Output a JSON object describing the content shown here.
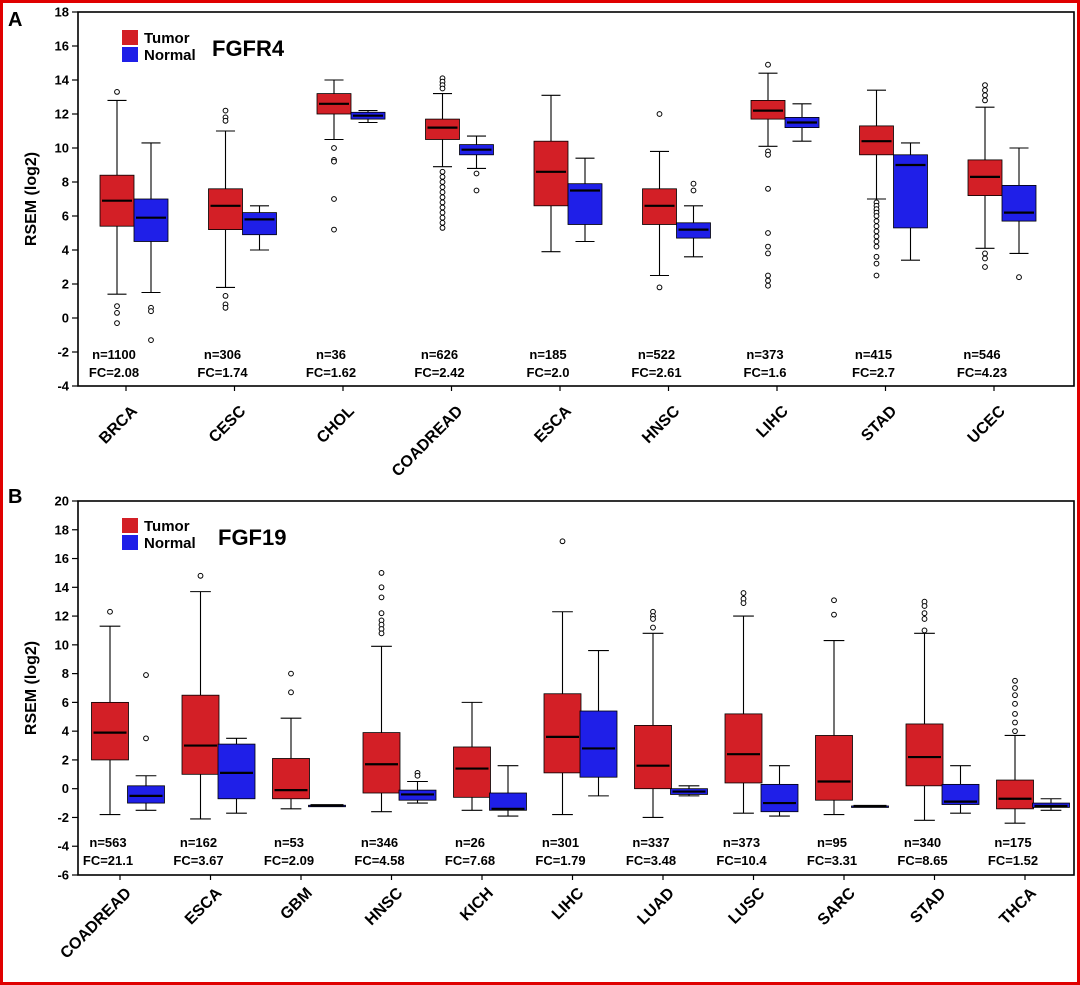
{
  "colors": {
    "tumor": "#d31f26",
    "normal": "#1f1fe8",
    "frame": "#e00000"
  },
  "chart_data": [
    {
      "type": "box",
      "panel_label": "A",
      "title": "FGFR4",
      "ylabel": "RSEM (log2)",
      "ylim": [
        -4,
        18
      ],
      "yticks": [
        -4,
        -2,
        0,
        2,
        4,
        6,
        8,
        10,
        12,
        14,
        16,
        18
      ],
      "legend": [
        "Tumor",
        "Normal"
      ],
      "legend_position": "top-left",
      "categories": [
        {
          "name": "BRCA",
          "n": "n=1100",
          "fc": "FC=2.08",
          "tumor": {
            "whislo": 1.4,
            "q1": 5.4,
            "med": 6.9,
            "q3": 8.4,
            "whishi": 12.8,
            "fliers": [
              13.3,
              0.7,
              0.3,
              -0.3
            ]
          },
          "normal": {
            "whislo": 1.5,
            "q1": 4.5,
            "med": 5.9,
            "q3": 7.0,
            "whishi": 10.3,
            "fliers": [
              0.6,
              0.4,
              -1.3
            ]
          }
        },
        {
          "name": "CESC",
          "n": "n=306",
          "fc": "FC=1.74",
          "tumor": {
            "whislo": 1.8,
            "q1": 5.2,
            "med": 6.6,
            "q3": 7.6,
            "whishi": 11.0,
            "fliers": [
              12.2,
              11.8,
              11.6,
              1.3,
              0.8,
              0.6
            ]
          },
          "normal": {
            "whislo": 4.0,
            "q1": 4.9,
            "med": 5.8,
            "q3": 6.2,
            "whishi": 6.6,
            "fliers": []
          }
        },
        {
          "name": "CHOL",
          "n": "n=36",
          "fc": "FC=1.62",
          "tumor": {
            "whislo": 10.5,
            "q1": 12.0,
            "med": 12.6,
            "q3": 13.2,
            "whishi": 14.0,
            "fliers": [
              10.0,
              9.3,
              9.2,
              7.0,
              5.2
            ]
          },
          "normal": {
            "whislo": 11.5,
            "q1": 11.7,
            "med": 11.9,
            "q3": 12.1,
            "whishi": 12.2,
            "fliers": []
          }
        },
        {
          "name": "COADREAD",
          "n": "n=626",
          "fc": "FC=2.42",
          "tumor": {
            "whislo": 8.9,
            "q1": 10.5,
            "med": 11.2,
            "q3": 11.7,
            "whishi": 13.2,
            "fliers": [
              14.1,
              13.9,
              13.7,
              13.5,
              8.6,
              8.3,
              8.0,
              7.7,
              7.4,
              7.1,
              6.8,
              6.5,
              6.2,
              5.9,
              5.6,
              5.3
            ]
          },
          "normal": {
            "whislo": 8.8,
            "q1": 9.6,
            "med": 9.9,
            "q3": 10.2,
            "whishi": 10.7,
            "fliers": [
              8.5,
              7.5
            ]
          }
        },
        {
          "name": "ESCA",
          "n": "n=185",
          "fc": "FC=2.0",
          "tumor": {
            "whislo": 3.9,
            "q1": 6.6,
            "med": 8.6,
            "q3": 10.4,
            "whishi": 13.1,
            "fliers": []
          },
          "normal": {
            "whislo": 4.5,
            "q1": 5.5,
            "med": 7.5,
            "q3": 7.9,
            "whishi": 9.4,
            "fliers": []
          }
        },
        {
          "name": "HNSC",
          "n": "n=522",
          "fc": "FC=2.61",
          "tumor": {
            "whislo": 2.5,
            "q1": 5.5,
            "med": 6.6,
            "q3": 7.6,
            "whishi": 9.8,
            "fliers": [
              12.0,
              1.8
            ]
          },
          "normal": {
            "whislo": 3.6,
            "q1": 4.7,
            "med": 5.2,
            "q3": 5.6,
            "whishi": 6.6,
            "fliers": [
              7.9,
              7.5
            ]
          }
        },
        {
          "name": "LIHC",
          "n": "n=373",
          "fc": "FC=1.6",
          "tumor": {
            "whislo": 10.1,
            "q1": 11.7,
            "med": 12.2,
            "q3": 12.8,
            "whishi": 14.4,
            "fliers": [
              14.9,
              9.8,
              9.6,
              7.6,
              5.0,
              4.2,
              3.8,
              2.5,
              2.2,
              1.9
            ]
          },
          "normal": {
            "whislo": 10.4,
            "q1": 11.2,
            "med": 11.5,
            "q3": 11.8,
            "whishi": 12.6,
            "fliers": []
          }
        },
        {
          "name": "STAD",
          "n": "n=415",
          "fc": "FC=2.7",
          "tumor": {
            "whislo": 7.0,
            "q1": 9.6,
            "med": 10.4,
            "q3": 11.3,
            "whishi": 13.4,
            "fliers": [
              6.8,
              6.6,
              6.4,
              6.2,
              6.0,
              5.7,
              5.4,
              5.1,
              4.8,
              4.5,
              4.2,
              3.6,
              3.2,
              2.5
            ]
          },
          "normal": {
            "whislo": 3.4,
            "q1": 5.3,
            "med": 9.0,
            "q3": 9.6,
            "whishi": 10.3,
            "fliers": []
          }
        },
        {
          "name": "UCEC",
          "n": "n=546",
          "fc": "FC=4.23",
          "tumor": {
            "whislo": 4.1,
            "q1": 7.2,
            "med": 8.3,
            "q3": 9.3,
            "whishi": 12.4,
            "fliers": [
              13.7,
              13.4,
              13.1,
              12.8,
              3.8,
              3.5,
              3.0
            ]
          },
          "normal": {
            "whislo": 3.8,
            "q1": 5.7,
            "med": 6.2,
            "q3": 7.8,
            "whishi": 10.0,
            "fliers": [
              2.4
            ]
          }
        }
      ]
    },
    {
      "type": "box",
      "panel_label": "B",
      "title": "FGF19",
      "ylabel": "RSEM (log2)",
      "ylim": [
        -6,
        20
      ],
      "yticks": [
        -6,
        -4,
        -2,
        0,
        2,
        4,
        6,
        8,
        10,
        12,
        14,
        16,
        18,
        20
      ],
      "legend": [
        "Tumor",
        "Normal"
      ],
      "legend_position": "top-left",
      "categories": [
        {
          "name": "COADREAD",
          "n": "n=563",
          "fc": "FC=21.1",
          "tumor": {
            "whislo": -1.8,
            "q1": 2.0,
            "med": 3.9,
            "q3": 6.0,
            "whishi": 11.3,
            "fliers": [
              12.3
            ]
          },
          "normal": {
            "whislo": -1.5,
            "q1": -1.0,
            "med": -0.5,
            "q3": 0.2,
            "whishi": 0.9,
            "fliers": [
              7.9,
              3.5
            ]
          }
        },
        {
          "name": "ESCA",
          "n": "n=162",
          "fc": "FC=3.67",
          "tumor": {
            "whislo": -2.1,
            "q1": 1.0,
            "med": 3.0,
            "q3": 6.5,
            "whishi": 13.7,
            "fliers": [
              14.8
            ]
          },
          "normal": {
            "whislo": -1.7,
            "q1": -0.7,
            "med": 1.1,
            "q3": 3.1,
            "whishi": 3.5,
            "fliers": []
          }
        },
        {
          "name": "GBM",
          "n": "n=53",
          "fc": "FC=2.09",
          "tumor": {
            "whislo": -1.4,
            "q1": -0.7,
            "med": -0.1,
            "q3": 2.1,
            "whishi": 4.9,
            "fliers": [
              8.0,
              6.7
            ]
          },
          "normal": {
            "whislo": -1.15,
            "q1": -1.15,
            "med": -1.15,
            "q3": -1.15,
            "whishi": -1.15,
            "fliers": []
          }
        },
        {
          "name": "HNSC",
          "n": "n=346",
          "fc": "FC=4.58",
          "tumor": {
            "whislo": -1.6,
            "q1": -0.3,
            "med": 1.7,
            "q3": 3.9,
            "whishi": 9.9,
            "fliers": [
              15.0,
              14.0,
              13.3,
              12.2,
              11.7,
              11.4,
              11.1,
              10.8
            ]
          },
          "normal": {
            "whislo": -1.0,
            "q1": -0.8,
            "med": -0.4,
            "q3": -0.1,
            "whishi": 0.5,
            "fliers": [
              1.1,
              0.9
            ]
          }
        },
        {
          "name": "KICH",
          "n": "n=26",
          "fc": "FC=7.68",
          "tumor": {
            "whislo": -1.5,
            "q1": -0.6,
            "med": 1.4,
            "q3": 2.9,
            "whishi": 6.0,
            "fliers": []
          },
          "normal": {
            "whislo": -1.9,
            "q1": -1.5,
            "med": -1.4,
            "q3": -0.3,
            "whishi": 1.6,
            "fliers": []
          }
        },
        {
          "name": "LIHC",
          "n": "n=301",
          "fc": "FC=1.79",
          "tumor": {
            "whislo": -1.8,
            "q1": 1.1,
            "med": 3.6,
            "q3": 6.6,
            "whishi": 12.3,
            "fliers": [
              17.2
            ]
          },
          "normal": {
            "whislo": -0.5,
            "q1": 0.8,
            "med": 2.8,
            "q3": 5.4,
            "whishi": 9.6,
            "fliers": []
          }
        },
        {
          "name": "LUAD",
          "n": "n=337",
          "fc": "FC=3.48",
          "tumor": {
            "whislo": -2.0,
            "q1": 0.0,
            "med": 1.6,
            "q3": 4.4,
            "whishi": 10.8,
            "fliers": [
              12.3,
              12.0,
              11.8,
              11.2
            ]
          },
          "normal": {
            "whislo": -0.5,
            "q1": -0.4,
            "med": -0.2,
            "q3": 0.0,
            "whishi": 0.2,
            "fliers": []
          }
        },
        {
          "name": "LUSC",
          "n": "n=373",
          "fc": "FC=10.4",
          "tumor": {
            "whislo": -1.7,
            "q1": 0.4,
            "med": 2.4,
            "q3": 5.2,
            "whishi": 12.0,
            "fliers": [
              13.6,
              13.2,
              12.9
            ]
          },
          "normal": {
            "whislo": -1.9,
            "q1": -1.6,
            "med": -1.0,
            "q3": 0.3,
            "whishi": 1.6,
            "fliers": []
          }
        },
        {
          "name": "SARC",
          "n": "n=95",
          "fc": "FC=3.31",
          "tumor": {
            "whislo": -1.8,
            "q1": -0.8,
            "med": 0.5,
            "q3": 3.7,
            "whishi": 10.3,
            "fliers": [
              13.1,
              12.1
            ]
          },
          "normal": {
            "whislo": -1.2,
            "q1": -1.2,
            "med": -1.2,
            "q3": -1.2,
            "whishi": -1.2,
            "fliers": []
          }
        },
        {
          "name": "STAD",
          "n": "n=340",
          "fc": "FC=8.65",
          "tumor": {
            "whislo": -2.2,
            "q1": 0.2,
            "med": 2.2,
            "q3": 4.5,
            "whishi": 10.8,
            "fliers": [
              13.0,
              12.7,
              12.2,
              11.8,
              11.0
            ]
          },
          "normal": {
            "whislo": -1.7,
            "q1": -1.1,
            "med": -0.9,
            "q3": 0.3,
            "whishi": 1.6,
            "fliers": []
          }
        },
        {
          "name": "THCA",
          "n": "n=175",
          "fc": "FC=1.52",
          "tumor": {
            "whislo": -2.4,
            "q1": -1.4,
            "med": -0.7,
            "q3": 0.6,
            "whishi": 3.7,
            "fliers": [
              7.5,
              7.0,
              6.5,
              5.9,
              5.2,
              4.6,
              4.0
            ]
          },
          "normal": {
            "whislo": -1.5,
            "q1": -1.3,
            "med": -1.2,
            "q3": -1.0,
            "whishi": -0.7,
            "fliers": []
          }
        }
      ]
    }
  ]
}
